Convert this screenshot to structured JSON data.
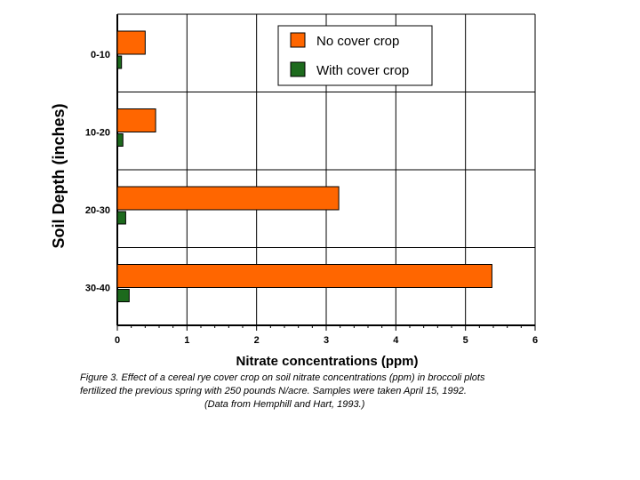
{
  "chart_data": {
    "type": "bar",
    "orientation": "horizontal",
    "categories": [
      "0-10",
      "10-20",
      "20-30",
      "30-40"
    ],
    "series": [
      {
        "name": "No cover crop",
        "color": "#ff6600",
        "values": [
          0.4,
          0.55,
          3.18,
          5.38
        ]
      },
      {
        "name": "With cover crop",
        "color": "#1d6a1d",
        "values": [
          0.06,
          0.08,
          0.12,
          0.17
        ]
      }
    ],
    "xlabel": "Nitrate concentrations (ppm)",
    "ylabel": "Soil Depth (inches)",
    "xlim": [
      0,
      6
    ],
    "xticks": [
      "0",
      "1",
      "2",
      "3",
      "4",
      "5",
      "6"
    ],
    "grid": true,
    "legend": "top-right"
  },
  "caption": {
    "line1": "Figure 3.  Effect of a cereal rye cover crop on soil nitrate concentrations (ppm) in broccoli plots",
    "line2": "fertilized the previous spring with 250 pounds N/acre.  Samples were taken April 15, 1992.",
    "line3": "(Data from Hemphill and Hart, 1993.)"
  }
}
